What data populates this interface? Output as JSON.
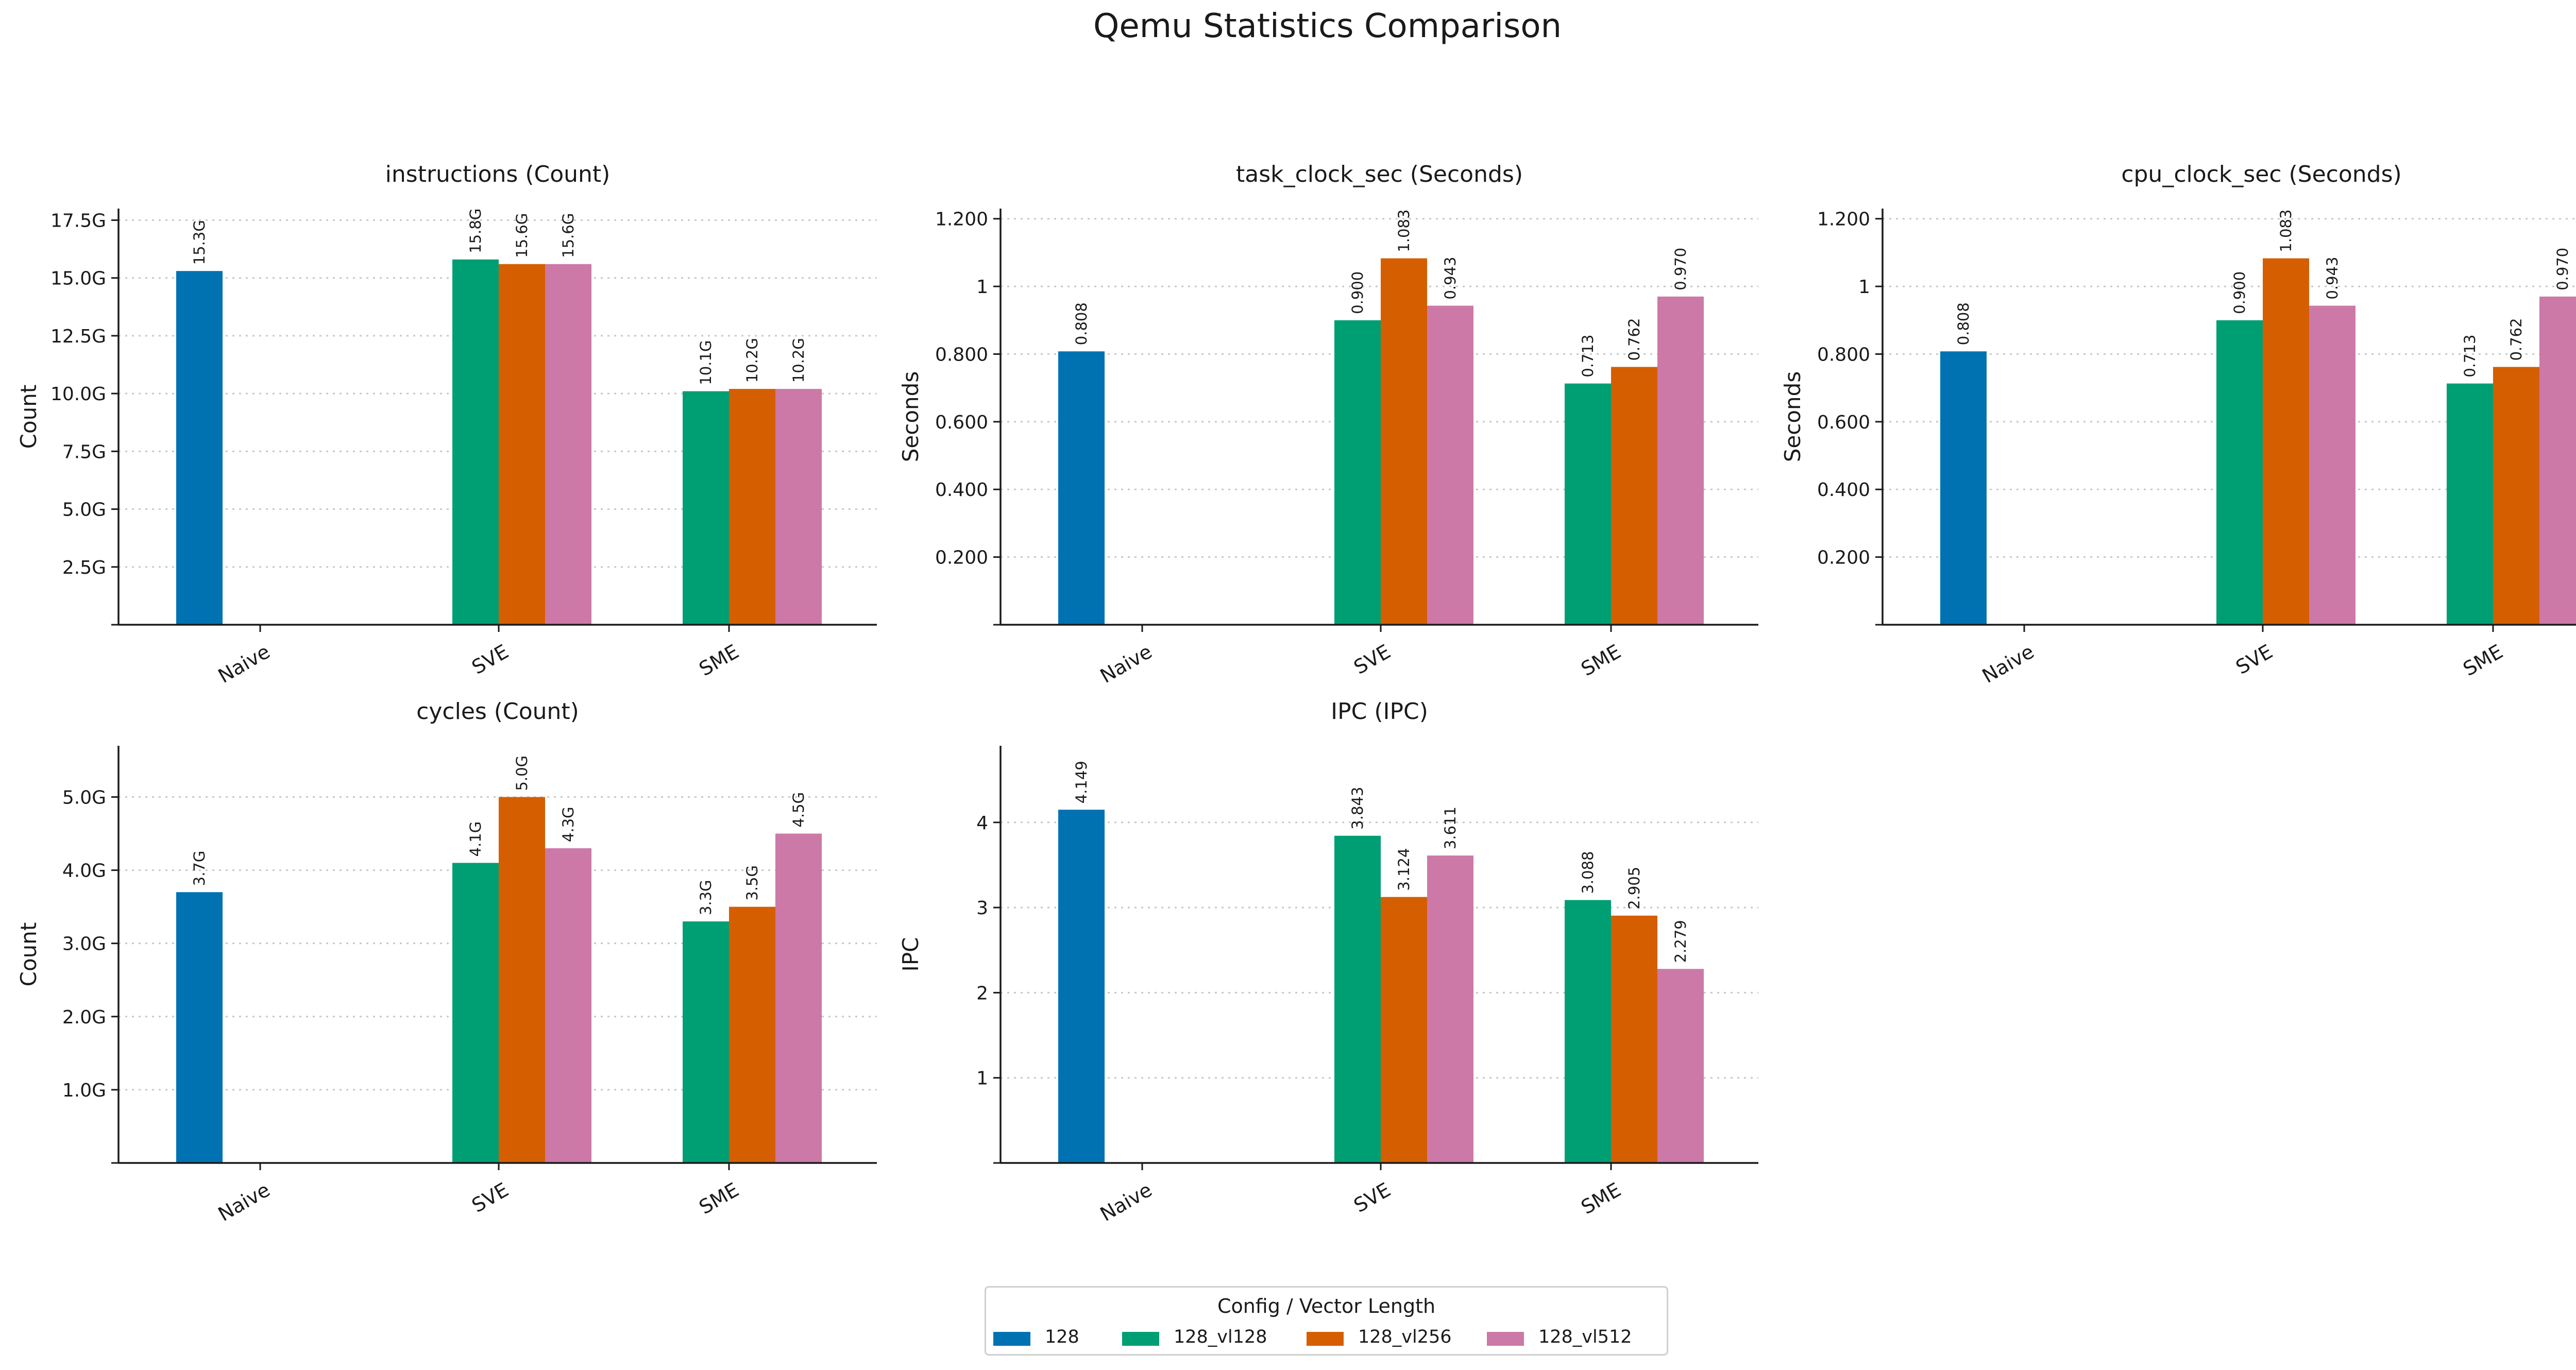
{
  "title": "Qemu Statistics Comparison",
  "legend": {
    "title": "Config / Vector Length",
    "items": [
      {
        "label": "128",
        "color": "#0072b2"
      },
      {
        "label": "128_vl128",
        "color": "#009e73"
      },
      {
        "label": "128_vl256",
        "color": "#d55e00"
      },
      {
        "label": "128_vl512",
        "color": "#cc79a7"
      }
    ]
  },
  "chart_data": [
    {
      "type": "bar",
      "title": "instructions (Count)",
      "ylabel": "Count",
      "categories": [
        "Naive",
        "SVE",
        "SME"
      ],
      "ylim": [
        0,
        18.0
      ],
      "yticks": [
        2.5,
        5.0,
        7.5,
        10.0,
        12.5,
        15.0,
        17.5
      ],
      "ytick_labels": [
        "2.5G",
        "5.0G",
        "7.5G",
        "10.0G",
        "12.5G",
        "15.0G",
        "17.5G"
      ],
      "series": [
        {
          "name": "128",
          "values": [
            15.3,
            null,
            null
          ],
          "labels": [
            "15.3G",
            "",
            ""
          ]
        },
        {
          "name": "128_vl128",
          "values": [
            null,
            15.8,
            10.1
          ],
          "labels": [
            "",
            "15.8G",
            "10.1G"
          ]
        },
        {
          "name": "128_vl256",
          "values": [
            null,
            15.6,
            10.2
          ],
          "labels": [
            "",
            "15.6G",
            "10.2G"
          ]
        },
        {
          "name": "128_vl512",
          "values": [
            null,
            15.6,
            10.2
          ],
          "labels": [
            "",
            "15.6G",
            "10.2G"
          ]
        }
      ],
      "grid": "y-dotted"
    },
    {
      "type": "bar",
      "title": "task_clock_sec (Seconds)",
      "ylabel": "Seconds",
      "categories": [
        "Naive",
        "SVE",
        "SME"
      ],
      "ylim": [
        0,
        1.23
      ],
      "yticks": [
        0.2,
        0.4,
        0.6,
        0.8,
        1.0,
        1.2
      ],
      "ytick_labels": [
        "0.200",
        "0.400",
        "0.600",
        "0.800",
        "1",
        "1.200"
      ],
      "series": [
        {
          "name": "128",
          "values": [
            0.808,
            null,
            null
          ],
          "labels": [
            "0.808",
            "",
            ""
          ]
        },
        {
          "name": "128_vl128",
          "values": [
            null,
            0.9,
            0.713
          ],
          "labels": [
            "",
            "0.900",
            "0.713"
          ]
        },
        {
          "name": "128_vl256",
          "values": [
            null,
            1.083,
            0.762
          ],
          "labels": [
            "",
            "1.083",
            "0.762"
          ]
        },
        {
          "name": "128_vl512",
          "values": [
            null,
            0.943,
            0.97
          ],
          "labels": [
            "",
            "0.943",
            "0.970"
          ]
        }
      ],
      "grid": "y-dotted"
    },
    {
      "type": "bar",
      "title": "cpu_clock_sec (Seconds)",
      "ylabel": "Seconds",
      "categories": [
        "Naive",
        "SVE",
        "SME"
      ],
      "ylim": [
        0,
        1.23
      ],
      "yticks": [
        0.2,
        0.4,
        0.6,
        0.8,
        1.0,
        1.2
      ],
      "ytick_labels": [
        "0.200",
        "0.400",
        "0.600",
        "0.800",
        "1",
        "1.200"
      ],
      "series": [
        {
          "name": "128",
          "values": [
            0.808,
            null,
            null
          ],
          "labels": [
            "0.808",
            "",
            ""
          ]
        },
        {
          "name": "128_vl128",
          "values": [
            null,
            0.9,
            0.713
          ],
          "labels": [
            "",
            "0.900",
            "0.713"
          ]
        },
        {
          "name": "128_vl256",
          "values": [
            null,
            1.083,
            0.762
          ],
          "labels": [
            "",
            "1.083",
            "0.762"
          ]
        },
        {
          "name": "128_vl512",
          "values": [
            null,
            0.943,
            0.97
          ],
          "labels": [
            "",
            "0.943",
            "0.970"
          ]
        }
      ],
      "grid": "y-dotted"
    },
    {
      "type": "bar",
      "title": "cycles (Count)",
      "ylabel": "Count",
      "categories": [
        "Naive",
        "SVE",
        "SME"
      ],
      "ylim": [
        0,
        5.7
      ],
      "yticks": [
        1.0,
        2.0,
        3.0,
        4.0,
        5.0
      ],
      "ytick_labels": [
        "1.0G",
        "2.0G",
        "3.0G",
        "4.0G",
        "5.0G"
      ],
      "series": [
        {
          "name": "128",
          "values": [
            3.7,
            null,
            null
          ],
          "labels": [
            "3.7G",
            "",
            ""
          ]
        },
        {
          "name": "128_vl128",
          "values": [
            null,
            4.1,
            3.3
          ],
          "labels": [
            "",
            "4.1G",
            "3.3G"
          ]
        },
        {
          "name": "128_vl256",
          "values": [
            null,
            5.0,
            3.5
          ],
          "labels": [
            "",
            "5.0G",
            "3.5G"
          ]
        },
        {
          "name": "128_vl512",
          "values": [
            null,
            4.3,
            4.5
          ],
          "labels": [
            "",
            "4.3G",
            "4.5G"
          ]
        }
      ],
      "grid": "y-dotted"
    },
    {
      "type": "bar",
      "title": "IPC (IPC)",
      "ylabel": "IPC",
      "categories": [
        "Naive",
        "SVE",
        "SME"
      ],
      "ylim": [
        0,
        4.9
      ],
      "yticks": [
        1,
        2,
        3,
        4
      ],
      "ytick_labels": [
        "1",
        "2",
        "3",
        "4"
      ],
      "series": [
        {
          "name": "128",
          "values": [
            4.149,
            null,
            null
          ],
          "labels": [
            "4.149",
            "",
            ""
          ]
        },
        {
          "name": "128_vl128",
          "values": [
            null,
            3.843,
            3.088
          ],
          "labels": [
            "",
            "3.843",
            "3.088"
          ]
        },
        {
          "name": "128_vl256",
          "values": [
            null,
            3.124,
            2.905
          ],
          "labels": [
            "",
            "3.124",
            "2.905"
          ]
        },
        {
          "name": "128_vl512",
          "values": [
            null,
            3.611,
            2.279
          ],
          "labels": [
            "",
            "3.611",
            "2.279"
          ]
        }
      ],
      "grid": "y-dotted"
    }
  ]
}
